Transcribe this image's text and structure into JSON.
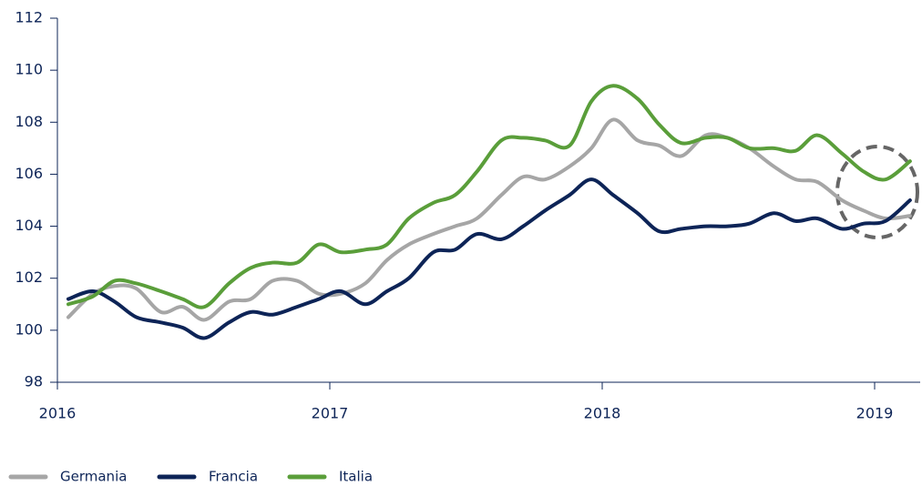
{
  "chart_data": {
    "type": "line",
    "x": [
      2016.04,
      2016.13,
      2016.21,
      2016.29,
      2016.38,
      2016.46,
      2016.54,
      2016.63,
      2016.71,
      2016.79,
      2016.88,
      2016.96,
      2017.04,
      2017.13,
      2017.21,
      2017.29,
      2017.38,
      2017.46,
      2017.54,
      2017.63,
      2017.71,
      2017.79,
      2017.88,
      2017.96,
      2018.04,
      2018.13,
      2018.21,
      2018.29,
      2018.38,
      2018.46,
      2018.54,
      2018.63,
      2018.71,
      2018.79,
      2018.88,
      2018.96,
      2019.04,
      2019.13
    ],
    "series": [
      {
        "name": "Germania",
        "color": "#a6a6a6",
        "values": [
          100.5,
          101.4,
          101.7,
          101.6,
          100.7,
          100.9,
          100.4,
          101.1,
          101.2,
          101.9,
          101.9,
          101.4,
          101.4,
          101.8,
          102.7,
          103.3,
          103.7,
          104.0,
          104.3,
          105.2,
          105.9,
          105.8,
          106.3,
          107.0,
          108.1,
          107.3,
          107.1,
          106.7,
          107.5,
          107.4,
          107.0,
          106.3,
          105.8,
          105.7,
          105.0,
          104.6,
          104.3,
          104.4
        ]
      },
      {
        "name": "Francia",
        "color": "#0d2457",
        "values": [
          101.2,
          101.5,
          101.1,
          100.5,
          100.3,
          100.1,
          99.7,
          100.3,
          100.7,
          100.6,
          100.9,
          101.2,
          101.5,
          101.0,
          101.5,
          102.0,
          103.0,
          103.1,
          103.7,
          103.5,
          104.0,
          104.6,
          105.2,
          105.8,
          105.2,
          104.5,
          103.8,
          103.9,
          104.0,
          104.0,
          104.1,
          104.5,
          104.2,
          104.3,
          103.9,
          104.1,
          104.2,
          105.0
        ]
      },
      {
        "name": "Italia",
        "color": "#5a9e3a",
        "values": [
          101.0,
          101.3,
          101.9,
          101.8,
          101.5,
          101.2,
          100.9,
          101.8,
          102.4,
          102.6,
          102.6,
          103.3,
          103.0,
          103.1,
          103.3,
          104.3,
          104.9,
          105.2,
          106.1,
          107.3,
          107.4,
          107.3,
          107.1,
          108.8,
          109.4,
          108.9,
          107.9,
          107.2,
          107.4,
          107.4,
          107.0,
          107.0,
          106.9,
          107.5,
          106.8,
          106.1,
          105.8,
          106.5
        ]
      }
    ],
    "xlim": [
      2016,
      2019.17
    ],
    "xticks": [
      2016,
      2017,
      2018,
      2019
    ],
    "ylim": [
      98,
      112
    ],
    "yticks": [
      98,
      100,
      102,
      104,
      106,
      108,
      110,
      112
    ]
  }
}
